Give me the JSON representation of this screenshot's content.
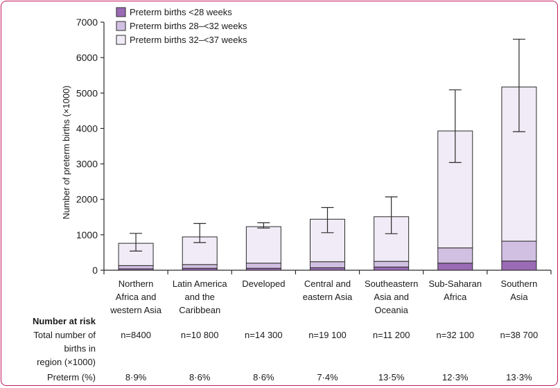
{
  "chart_data": {
    "type": "bar",
    "stacked": true,
    "ylabel": "Number of preterm births (×1000)",
    "ylim": [
      0,
      7000
    ],
    "yticks": [
      "0",
      "1000",
      "2000",
      "3000",
      "4000",
      "5000",
      "6000",
      "7000"
    ],
    "ytick_values": [
      0,
      1000,
      2000,
      3000,
      4000,
      5000,
      6000,
      7000
    ],
    "legend_position": "top-left",
    "categories": [
      [
        "Northern",
        "Africa and",
        "western Asia"
      ],
      [
        "Latin America",
        "and the",
        "Caribbean"
      ],
      [
        "Developed"
      ],
      [
        "Central and",
        "eastern Asia"
      ],
      [
        "Southeastern",
        "Asia and",
        "Oceania"
      ],
      [
        "Sub-Saharan",
        "Africa"
      ],
      [
        "Southern",
        "Asia"
      ]
    ],
    "series": [
      {
        "name": "Preterm births <28 weeks",
        "color": "#9b6bb5",
        "values": [
          40,
          55,
          55,
          70,
          90,
          200,
          260
        ]
      },
      {
        "name": "Preterm births 28–<32 weeks",
        "color": "#d2c0e3",
        "values": [
          90,
          105,
          145,
          170,
          160,
          430,
          560
        ]
      },
      {
        "name": "Preterm births 32–<37 weeks",
        "color": "#f0ebf6",
        "values": [
          630,
          780,
          1030,
          1200,
          1260,
          3300,
          4350
        ]
      }
    ],
    "totals": [
      760,
      940,
      1230,
      1440,
      1510,
      3930,
      5170
    ],
    "error_bars": [
      {
        "low": 540,
        "high": 1040
      },
      {
        "low": 780,
        "high": 1320
      },
      {
        "low": 1190,
        "high": 1340
      },
      {
        "low": 1060,
        "high": 1770
      },
      {
        "low": 1030,
        "high": 2070
      },
      {
        "low": 3040,
        "high": 5090
      },
      {
        "low": 3910,
        "high": 6520
      }
    ]
  },
  "risk_table": {
    "heading": "Number at risk",
    "row1_label": [
      "Total number of",
      "births in",
      "region (×1000)"
    ],
    "row1_values": [
      "n=8400",
      "n=10 800",
      "n=14 300",
      "n=19 100",
      "n=11 200",
      "n=32 100",
      "n=38 700"
    ],
    "row2_label": "Preterm (%)",
    "row2_values": [
      "8·9%",
      "8·6%",
      "8·6%",
      "7·4%",
      "13·5%",
      "12·3%",
      "13·3%"
    ]
  }
}
